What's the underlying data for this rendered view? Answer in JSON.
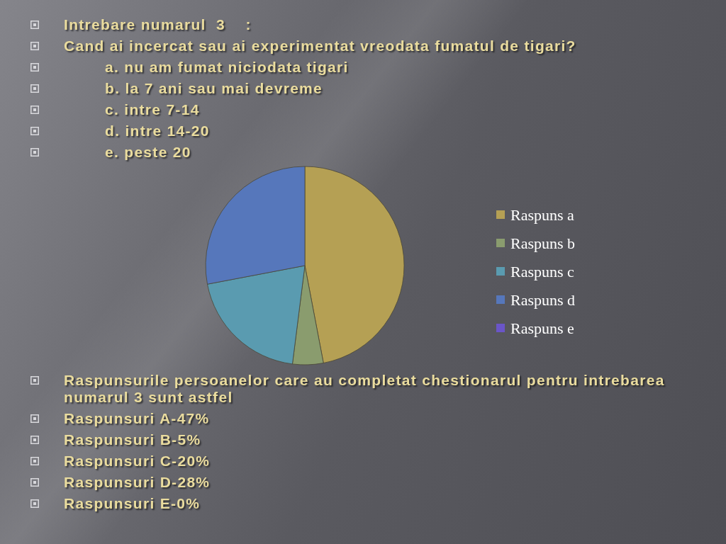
{
  "chart_data": {
    "type": "pie",
    "title": "Intrebare numarul  3    :",
    "subtitle": "Cand ai incercat sau ai experimentat vreodata fumatul de tigari?",
    "annotations": [
      "a. nu am fumat niciodata tigari",
      "b. la 7 ani sau mai devreme",
      "c. intre 7-14",
      "d. intre 14-20",
      "e. peste 20",
      "Raspunsurile persoanelor care au completat chestionarul pentru intrebarea numarul 3 sunt astfel",
      "Raspunsuri A-47%",
      "Raspunsuri B-5%",
      "Raspunsuri C-20%",
      "Raspunsuri D-28%",
      "Raspunsuri E-0%"
    ],
    "categories": [
      "Raspuns a",
      "Raspuns b",
      "Raspuns c",
      "Raspuns d",
      "Raspuns e"
    ],
    "values": [
      47,
      5,
      20,
      28,
      0
    ],
    "colors": [
      "#b5a054",
      "#8a9c6e",
      "#5a9bb0",
      "#5677bb",
      "#6a55c8"
    ],
    "legend": "right"
  }
}
